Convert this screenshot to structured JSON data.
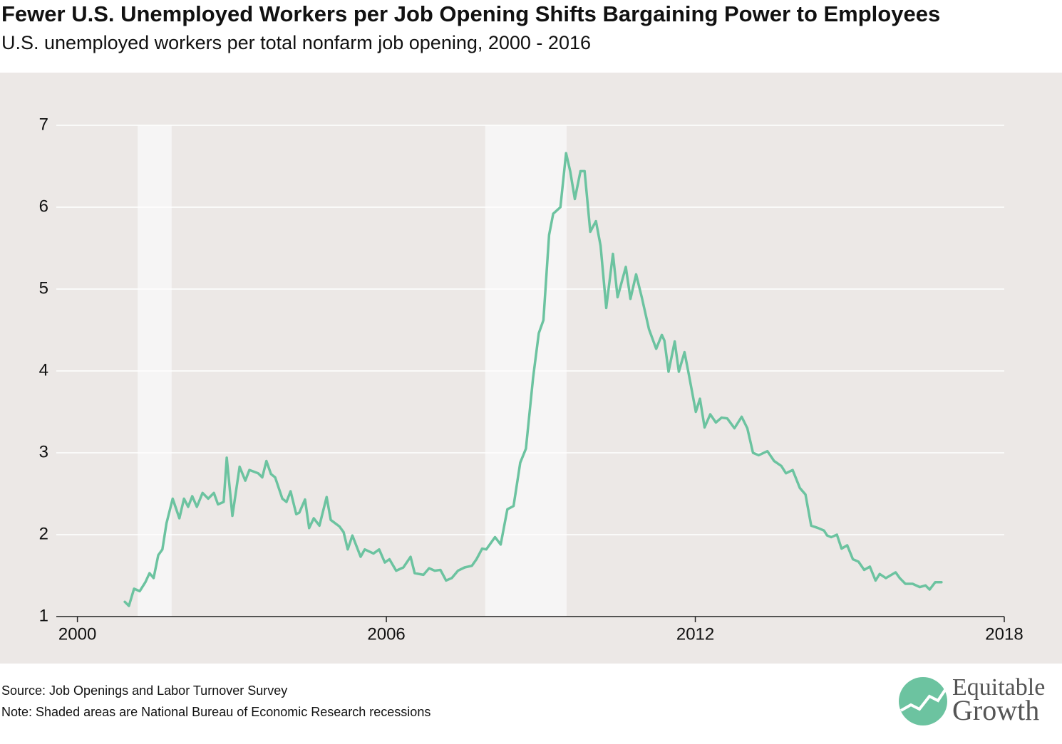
{
  "chart_data": {
    "type": "line",
    "title": "Fewer U.S. Unemployed Workers per Job Opening Shifts Bargaining Power to Employees",
    "subtitle": "U.S. unemployed workers per total nonfarm job opening, 2000 - 2016",
    "source": "Source: Job Openings and Labor Turnover Survey",
    "note": "Note: Shaded areas are National Bureau of Economic Research recessions",
    "logo": [
      "Equitable",
      "Growth"
    ],
    "xlim": [
      1999.59,
      2018
    ],
    "xticks": [
      2000,
      2006,
      2012,
      2018
    ],
    "ylim": [
      1,
      7
    ],
    "yticks": [
      1,
      2,
      3,
      4,
      5,
      6,
      7
    ],
    "grid": true,
    "recessions": [
      [
        2001.17,
        2001.83
      ],
      [
        2007.92,
        2009.5
      ]
    ],
    "x": [
      2000.92,
      2001.0,
      2001.1,
      2001.21,
      2001.32,
      2001.4,
      2001.48,
      2001.57,
      2001.65,
      2001.73,
      2001.85,
      2001.98,
      2002.07,
      2002.15,
      2002.23,
      2002.32,
      2002.43,
      2002.54,
      2002.65,
      2002.73,
      2002.84,
      2002.9,
      2003.01,
      2003.15,
      2003.26,
      2003.34,
      2003.51,
      2003.59,
      2003.67,
      2003.76,
      2003.84,
      2003.98,
      2004.06,
      2004.14,
      2004.25,
      2004.31,
      2004.42,
      2004.5,
      2004.59,
      2004.7,
      2004.84,
      2004.92,
      2005.09,
      2005.17,
      2005.25,
      2005.34,
      2005.5,
      2005.58,
      2005.75,
      2005.86,
      2005.97,
      2006.06,
      2006.19,
      2006.33,
      2006.47,
      2006.55,
      2006.72,
      2006.83,
      2006.94,
      2007.05,
      2007.16,
      2007.27,
      2007.39,
      2007.52,
      2007.66,
      2007.75,
      2007.86,
      2007.94,
      2008.11,
      2008.22,
      2008.35,
      2008.47,
      2008.6,
      2008.71,
      2008.85,
      2008.96,
      2009.05,
      2009.16,
      2009.24,
      2009.38,
      2009.49,
      2009.57,
      2009.66,
      2009.77,
      2009.85,
      2009.96,
      2010.07,
      2010.16,
      2010.27,
      2010.4,
      2010.49,
      2010.65,
      2010.74,
      2010.85,
      2010.96,
      2011.1,
      2011.24,
      2011.35,
      2011.4,
      2011.48,
      2011.6,
      2011.68,
      2011.79,
      2011.87,
      2012.01,
      2012.09,
      2012.18,
      2012.29,
      2012.4,
      2012.51,
      2012.62,
      2012.76,
      2012.9,
      2013.01,
      2013.12,
      2013.23,
      2013.4,
      2013.53,
      2013.67,
      2013.76,
      2013.89,
      2014.03,
      2014.14,
      2014.25,
      2014.39,
      2014.5,
      2014.56,
      2014.64,
      2014.75,
      2014.84,
      2014.95,
      2015.06,
      2015.17,
      2015.28,
      2015.39,
      2015.5,
      2015.58,
      2015.7,
      2015.89,
      2015.97,
      2016.08,
      2016.22,
      2016.36,
      2016.47,
      2016.55,
      2016.66,
      2016.78
    ],
    "series": [
      {
        "color": "#6cc3a0",
        "values": [
          1.18,
          1.13,
          1.34,
          1.31,
          1.42,
          1.53,
          1.47,
          1.75,
          1.82,
          2.14,
          2.44,
          2.2,
          2.44,
          2.34,
          2.47,
          2.34,
          2.51,
          2.44,
          2.51,
          2.37,
          2.4,
          2.94,
          2.23,
          2.83,
          2.66,
          2.79,
          2.75,
          2.7,
          2.9,
          2.74,
          2.7,
          2.44,
          2.4,
          2.53,
          2.25,
          2.27,
          2.43,
          2.08,
          2.2,
          2.11,
          2.46,
          2.18,
          2.1,
          2.03,
          1.82,
          1.99,
          1.73,
          1.82,
          1.77,
          1.82,
          1.66,
          1.7,
          1.56,
          1.6,
          1.73,
          1.53,
          1.51,
          1.59,
          1.56,
          1.57,
          1.44,
          1.47,
          1.56,
          1.6,
          1.62,
          1.7,
          1.83,
          1.82,
          1.97,
          1.88,
          2.31,
          2.35,
          2.88,
          3.05,
          3.92,
          4.46,
          4.62,
          5.66,
          5.92,
          6.0,
          6.66,
          6.44,
          6.1,
          6.44,
          6.44,
          5.7,
          5.83,
          5.53,
          4.77,
          5.43,
          4.9,
          5.27,
          4.88,
          5.18,
          4.9,
          4.51,
          4.27,
          4.44,
          4.37,
          3.99,
          4.36,
          3.99,
          4.23,
          3.97,
          3.5,
          3.66,
          3.31,
          3.47,
          3.37,
          3.43,
          3.42,
          3.3,
          3.44,
          3.3,
          3.0,
          2.97,
          3.02,
          2.9,
          2.84,
          2.75,
          2.79,
          2.57,
          2.49,
          2.11,
          2.08,
          2.05,
          1.99,
          1.97,
          2.0,
          1.83,
          1.87,
          1.7,
          1.67,
          1.57,
          1.61,
          1.44,
          1.52,
          1.47,
          1.54,
          1.47,
          1.4,
          1.4,
          1.36,
          1.38,
          1.33,
          1.42,
          1.42
        ]
      }
    ]
  }
}
